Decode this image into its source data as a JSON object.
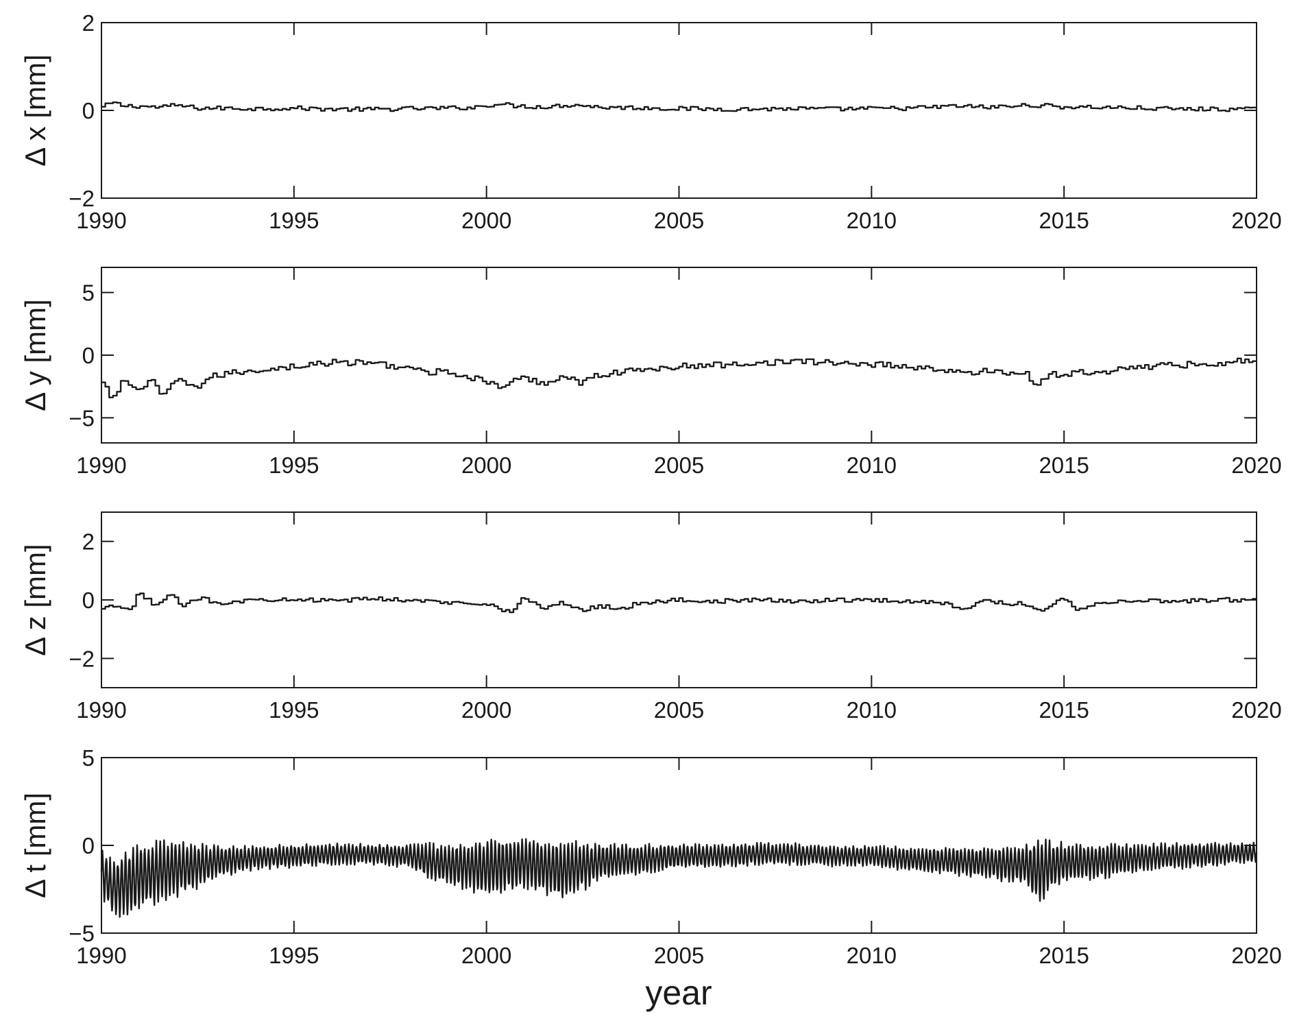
{
  "chart_data": [
    {
      "type": "line",
      "ylabel": "Δ x [mm]",
      "xlabel": "",
      "xlim": [
        1990,
        2020
      ],
      "ylim": [
        -2,
        2
      ],
      "xticks": [
        "1990",
        "1995",
        "2000",
        "2005",
        "2010",
        "2015",
        "2020"
      ],
      "yticks": [
        "−2",
        "0",
        "2"
      ],
      "step": true,
      "series": [
        {
          "x": [
            1990.0,
            1990.3,
            1990.6,
            1991.0,
            1991.5,
            1992.0,
            1992.5,
            1993.0,
            1994.0,
            1995.0,
            1996.0,
            1997.0,
            1998.0,
            1999.0,
            1999.7,
            2000.3,
            2000.8,
            2001.5,
            2002.3,
            2003.0,
            2004.0,
            2005.0,
            2006.0,
            2007.0,
            2008.0,
            2009.0,
            2010.0,
            2011.0,
            2012.3,
            2013.0,
            2014.3,
            2015.0,
            2016.0,
            2017.0,
            2018.0,
            2019.0,
            2020.0
          ],
          "y": [
            0.05,
            0.18,
            0.1,
            0.1,
            0.07,
            0.12,
            0.05,
            0.05,
            0.04,
            0.05,
            0.03,
            0.02,
            0.04,
            0.05,
            0.07,
            0.15,
            0.1,
            0.08,
            0.13,
            0.07,
            0.06,
            0.04,
            0.03,
            0.03,
            0.04,
            0.03,
            0.04,
            0.05,
            0.1,
            0.07,
            0.12,
            0.08,
            0.07,
            0.05,
            0.03,
            0.03,
            0.02
          ]
        }
      ]
    },
    {
      "type": "line",
      "ylabel": "Δ y [mm]",
      "xlabel": "",
      "xlim": [
        1990,
        2020
      ],
      "ylim": [
        -7,
        7
      ],
      "xticks": [
        "1990",
        "1995",
        "2000",
        "2005",
        "2010",
        "2015",
        "2020"
      ],
      "yticks": [
        "−5",
        "0",
        "5"
      ],
      "step": true,
      "series": [
        {
          "x": [
            1990.0,
            1990.3,
            1990.6,
            1991.0,
            1991.3,
            1991.6,
            1992.0,
            1992.5,
            1993.0,
            1994.0,
            1995.0,
            1996.0,
            1997.0,
            1998.0,
            1998.5,
            1999.0,
            1999.5,
            2000.0,
            2000.3,
            2001.0,
            2001.5,
            2002.0,
            2002.5,
            2003.0,
            2004.0,
            2005.0,
            2006.0,
            2007.0,
            2008.0,
            2009.0,
            2010.0,
            2011.0,
            2012.0,
            2012.5,
            2013.0,
            2013.5,
            2014.0,
            2014.3,
            2014.6,
            2015.0,
            2016.0,
            2017.0,
            2018.0,
            2019.0,
            2020.0
          ],
          "y": [
            -2.0,
            -3.5,
            -2.0,
            -2.8,
            -2.0,
            -3.3,
            -2.0,
            -2.5,
            -1.6,
            -1.2,
            -0.9,
            -0.6,
            -0.6,
            -1.0,
            -1.5,
            -1.2,
            -1.8,
            -2.0,
            -2.6,
            -1.8,
            -2.3,
            -1.6,
            -2.2,
            -1.5,
            -1.2,
            -0.9,
            -0.8,
            -0.6,
            -0.5,
            -0.6,
            -0.7,
            -0.9,
            -1.2,
            -1.6,
            -1.1,
            -1.5,
            -1.3,
            -2.6,
            -1.6,
            -1.5,
            -1.3,
            -0.9,
            -0.8,
            -0.6,
            -0.4
          ]
        }
      ]
    },
    {
      "type": "line",
      "ylabel": "Δ z [mm]",
      "xlabel": "",
      "xlim": [
        1990,
        2020
      ],
      "ylim": [
        -3,
        3
      ],
      "xticks": [
        "1990",
        "1995",
        "2000",
        "2005",
        "2010",
        "2015",
        "2020"
      ],
      "yticks": [
        "−2",
        "0",
        "2"
      ],
      "step": true,
      "series": [
        {
          "x": [
            1990.0,
            1990.4,
            1990.8,
            1991.0,
            1991.4,
            1991.8,
            1992.2,
            1992.6,
            1993.0,
            1994.0,
            1995.0,
            1996.0,
            1997.0,
            1998.0,
            1999.0,
            2000.0,
            2000.7,
            2001.0,
            2001.5,
            2002.0,
            2002.5,
            2003.0,
            2003.5,
            2004.0,
            2005.0,
            2006.0,
            2007.0,
            2008.0,
            2009.0,
            2010.0,
            2011.0,
            2012.0,
            2012.3,
            2013.0,
            2014.0,
            2014.5,
            2015.0,
            2015.3,
            2016.0,
            2017.0,
            2018.0,
            2019.0,
            2020.0
          ],
          "y": [
            -0.35,
            -0.2,
            -0.4,
            0.3,
            -0.2,
            0.15,
            -0.2,
            0.1,
            -0.1,
            0.0,
            0.05,
            -0.05,
            0.05,
            0.0,
            -0.1,
            -0.1,
            -0.45,
            0.1,
            -0.3,
            -0.1,
            -0.35,
            -0.2,
            -0.3,
            -0.1,
            0.0,
            -0.05,
            0.0,
            -0.05,
            0.0,
            0.0,
            -0.05,
            -0.1,
            -0.3,
            -0.05,
            -0.15,
            -0.35,
            0.1,
            -0.3,
            -0.1,
            0.0,
            -0.05,
            0.0,
            0.0
          ]
        }
      ]
    },
    {
      "type": "line",
      "ylabel": "Δ t [mm]",
      "xlabel": "year",
      "xlim": [
        1990,
        2020
      ],
      "ylim": [
        -5,
        5
      ],
      "xticks": [
        "1990",
        "1995",
        "2000",
        "2005",
        "2010",
        "2015",
        "2020"
      ],
      "yticks": [
        "−5",
        "0",
        "5"
      ],
      "step": false,
      "oscillating": true,
      "oscillation_period_years": 0.1,
      "series": [
        {
          "x": [
            1990.0,
            1990.3,
            1990.6,
            1991.0,
            1991.5,
            1992.0,
            1992.5,
            1993.0,
            1994.0,
            1995.0,
            1996.0,
            1997.0,
            1998.0,
            1998.5,
            1999.0,
            1999.5,
            2000.0,
            2000.5,
            2001.0,
            2001.5,
            2002.0,
            2002.5,
            2003.0,
            2004.0,
            2005.0,
            2006.0,
            2007.0,
            2008.0,
            2009.0,
            2010.0,
            2011.0,
            2012.0,
            2013.0,
            2014.0,
            2014.3,
            2014.6,
            2015.0,
            2016.0,
            2017.0,
            2018.0,
            2019.0,
            2020.0
          ],
          "y": [
            -1.5,
            -2.5,
            -2.2,
            -1.8,
            -1.5,
            -1.3,
            -1.2,
            -0.9,
            -0.7,
            -0.6,
            -0.5,
            -0.5,
            -0.6,
            -0.9,
            -1.1,
            -1.2,
            -1.3,
            -1.1,
            -1.0,
            -1.2,
            -1.4,
            -1.2,
            -0.9,
            -0.8,
            -0.6,
            -0.6,
            -0.5,
            -0.5,
            -0.6,
            -0.6,
            -0.8,
            -0.9,
            -1.0,
            -1.1,
            -1.5,
            -1.2,
            -1.0,
            -0.9,
            -0.7,
            -0.6,
            -0.5,
            -0.4
          ]
        }
      ],
      "amplitude": {
        "x": [
          1990.0,
          1990.5,
          1991.0,
          1992.0,
          1993.0,
          1994.0,
          1997.0,
          1998.0,
          1998.5,
          1999.5,
          2000.0,
          2001.0,
          2002.0,
          2003.0,
          2005.0,
          2010.0,
          2012.0,
          2013.0,
          2014.0,
          2014.3,
          2015.0,
          2017.0,
          2020.0
        ],
        "y": [
          1.2,
          1.5,
          1.7,
          1.4,
          0.8,
          0.6,
          0.5,
          0.6,
          0.9,
          1.2,
          1.5,
          1.3,
          1.5,
          0.9,
          0.6,
          0.5,
          0.7,
          0.8,
          1.0,
          1.6,
          1.0,
          0.7,
          0.5
        ]
      }
    }
  ]
}
